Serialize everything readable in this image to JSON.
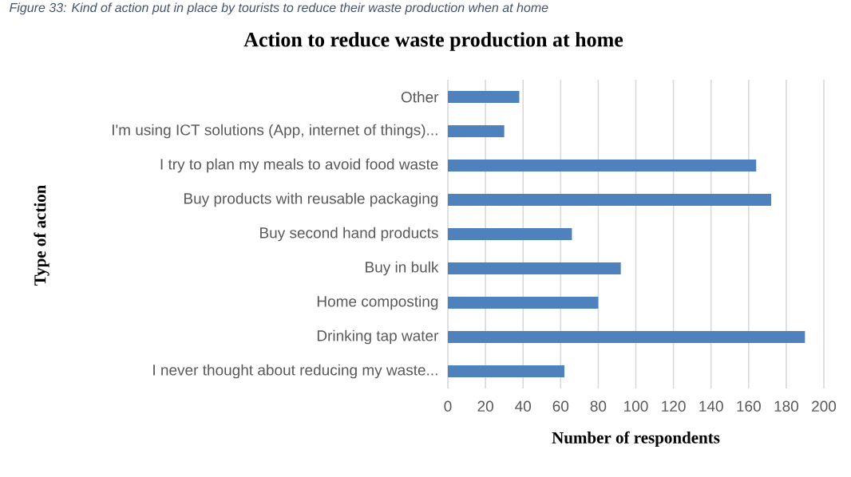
{
  "chart_data": {
    "type": "bar",
    "orientation": "horizontal",
    "title": "Action to reduce waste production at home",
    "xlabel": "Number of respondents",
    "ylabel": "Type of action",
    "annotations": [
      "Figure 33: Kind of action put in place by tourists to reduce their waste production when at home"
    ],
    "categories": [
      "Other",
      "I'm using ICT solutions (App, internet of things)...",
      "I try to plan my meals to avoid food waste",
      "Buy products with reusable packaging",
      "Buy second hand products",
      "Buy in bulk",
      "Home composting",
      "Drinking tap water",
      "I never thought about reducing my waste..."
    ],
    "values": [
      38,
      30,
      164,
      172,
      66,
      92,
      80,
      190,
      62
    ],
    "color": "#4f81bd",
    "xlim": [
      0,
      200
    ],
    "xticks": [
      0,
      20,
      40,
      60,
      80,
      100,
      120,
      140,
      160,
      180,
      200
    ],
    "grid": "x"
  }
}
